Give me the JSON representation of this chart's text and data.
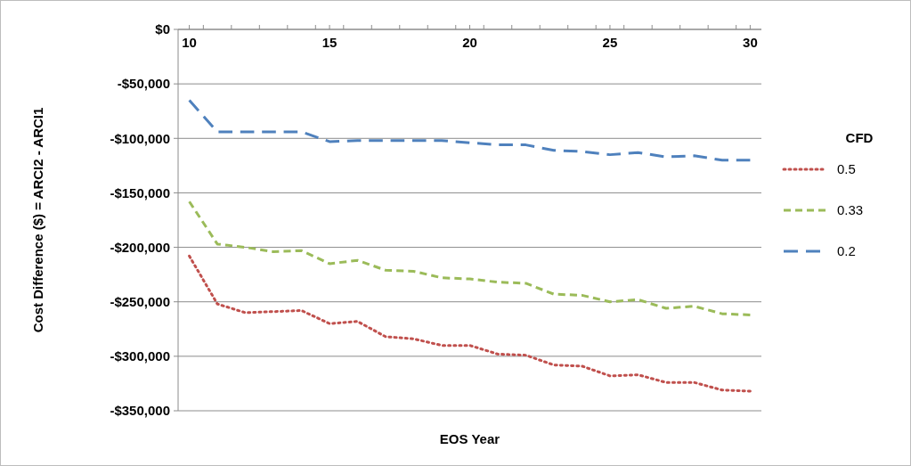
{
  "chart_data": {
    "type": "line",
    "xlabel": "EOS Year",
    "ylabel": "Cost Difference ($) = ARCI2 - ARCI1",
    "legend_title": "CFD",
    "legend": "right",
    "grid": "y",
    "x": [
      10,
      11,
      12,
      13,
      14,
      15,
      16,
      17,
      18,
      19,
      20,
      21,
      22,
      23,
      24,
      25,
      26,
      27,
      28,
      29,
      30
    ],
    "xlim": [
      9.6,
      30.4
    ],
    "xticks": [
      10,
      {
        "value": 10.5,
        "label": null
      },
      {
        "value": 11.5,
        "label": null
      },
      {
        "value": 12.5,
        "label": null
      },
      {
        "value": 13.5,
        "label": null
      },
      {
        "value": 14.5,
        "label": null
      },
      15,
      {
        "value": 15.5,
        "label": null
      },
      {
        "value": 16.5,
        "label": null
      },
      {
        "value": 17.5,
        "label": null
      },
      {
        "value": 18.5,
        "label": null
      },
      {
        "value": 19.5,
        "label": null
      },
      20,
      {
        "value": 20.5,
        "label": null
      },
      {
        "value": 21.5,
        "label": null
      },
      {
        "value": 22.5,
        "label": null
      },
      {
        "value": 23.5,
        "label": null
      },
      {
        "value": 24.5,
        "label": null
      },
      25,
      {
        "value": 25.5,
        "label": null
      },
      {
        "value": 26.5,
        "label": null
      },
      {
        "value": 27.5,
        "label": null
      },
      {
        "value": 28.5,
        "label": null
      },
      {
        "value": 29.5,
        "label": null
      },
      30
    ],
    "ylim": [
      -350000,
      0
    ],
    "yticks": [
      {
        "value": 0,
        "label": "$0"
      },
      {
        "value": -50000,
        "label": "-$50,000"
      },
      {
        "value": -100000,
        "label": "-$100,000"
      },
      {
        "value": -150000,
        "label": "-$150,000"
      },
      {
        "value": -200000,
        "label": "-$200,000"
      },
      {
        "value": -250000,
        "label": "-$250,000"
      },
      {
        "value": -300000,
        "label": "-$300,000"
      },
      {
        "value": -350000,
        "label": "-$350,000"
      }
    ],
    "series": [
      {
        "name": "0.5",
        "color": "#c0504d",
        "line_style": "dotted",
        "values": [
          -208000,
          -252000,
          -260000,
          -259000,
          -258000,
          -270000,
          -268000,
          -282000,
          -284000,
          -290000,
          -290000,
          -298000,
          -299000,
          -308000,
          -309000,
          -318000,
          -317000,
          -324000,
          -324000,
          -331000,
          -332000
        ]
      },
      {
        "name": "0.33",
        "color": "#9bbb59",
        "line_style": "dashed",
        "values": [
          -158000,
          -197000,
          -200000,
          -204000,
          -203000,
          -215000,
          -212000,
          -221000,
          -222000,
          -228000,
          -229000,
          -232000,
          -233000,
          -243000,
          -244000,
          -250000,
          -248000,
          -256000,
          -254000,
          -261000,
          -262000
        ]
      },
      {
        "name": "0.2",
        "color": "#4f81bd",
        "line_style": "dashed",
        "values": [
          -65000,
          -94000,
          -94000,
          -94000,
          -94000,
          -103000,
          -102000,
          -102000,
          -102000,
          -102000,
          -104000,
          -106000,
          -106000,
          -111000,
          -112000,
          -115000,
          -113000,
          -117000,
          -116000,
          -120000,
          -120000
        ]
      }
    ]
  }
}
